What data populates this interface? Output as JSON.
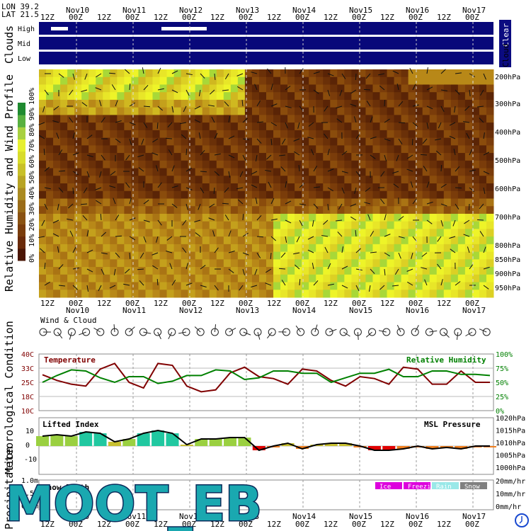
{
  "coords": {
    "lon": "LON 39.2",
    "lat": "LAT 21.5"
  },
  "time_axis": {
    "hour_labels": [
      "12Z",
      "00Z",
      "12Z",
      "00Z",
      "12Z",
      "00Z",
      "12Z",
      "00Z",
      "12Z",
      "00Z",
      "12Z",
      "00Z",
      "12Z",
      "00Z",
      "12Z",
      "00Z"
    ],
    "day_labels": [
      "Nov10",
      "Nov11",
      "Nov12",
      "Nov13",
      "Nov14",
      "Nov15",
      "Nov16",
      "Nov17"
    ]
  },
  "clouds": {
    "title": "Clouds",
    "levels": [
      "High",
      "Mid",
      "Low"
    ],
    "legend_clear": "Clear",
    "legend_cloud": "Cloud",
    "high_fraction_segments": [
      {
        "start_step": 0.1,
        "end_step": 0.7
      },
      {
        "start_step": 4.0,
        "end_step": 5.6
      }
    ]
  },
  "rh_profile": {
    "title": "Relative Humidity and Wind Profile",
    "pressure_levels": [
      "200hPa",
      "300hPa",
      "400hPa",
      "500hPa",
      "600hPa",
      "700hPa",
      "800hPa",
      "850hPa",
      "900hPa",
      "950hPa"
    ],
    "colorbar_labels": [
      "0%",
      "10%",
      "20%",
      "30%",
      "40%",
      "50%",
      "60%",
      "70%",
      "80%",
      "90%",
      "100%"
    ]
  },
  "wind_cloud": {
    "title": "Wind & Cloud"
  },
  "met_title": "Meteorological Condition",
  "chart_data": [
    {
      "type": "line",
      "title": "",
      "x": [
        "Nov9 12Z",
        "Nov9 18Z",
        "Nov10 00Z",
        "Nov10 06Z",
        "Nov10 12Z",
        "Nov10 18Z",
        "Nov11 00Z",
        "Nov11 06Z",
        "Nov11 12Z",
        "Nov11 18Z",
        "Nov12 00Z",
        "Nov12 06Z",
        "Nov12 12Z",
        "Nov12 18Z",
        "Nov13 00Z",
        "Nov13 06Z",
        "Nov13 12Z",
        "Nov13 18Z",
        "Nov14 00Z",
        "Nov14 06Z",
        "Nov14 12Z",
        "Nov14 18Z",
        "Nov15 00Z",
        "Nov15 06Z",
        "Nov15 12Z",
        "Nov15 18Z",
        "Nov16 00Z",
        "Nov16 06Z",
        "Nov16 12Z",
        "Nov16 18Z",
        "Nov17 00Z",
        "Nov17 06Z"
      ],
      "series": [
        {
          "name": "Temperature",
          "color": "#800000",
          "axis": "left",
          "values": [
            29,
            26,
            24,
            23,
            32,
            35,
            25,
            22,
            35,
            34,
            23,
            20,
            21,
            30,
            33,
            28,
            27,
            24,
            32,
            31,
            26,
            23,
            28,
            27,
            24,
            33,
            32,
            24,
            24,
            31,
            25,
            25
          ]
        },
        {
          "name": "Relative Humidity",
          "color": "#008000",
          "axis": "right",
          "values": [
            50,
            62,
            72,
            70,
            58,
            50,
            60,
            60,
            48,
            52,
            62,
            62,
            72,
            70,
            55,
            58,
            70,
            70,
            66,
            66,
            50,
            58,
            66,
            66,
            73,
            60,
            60,
            70,
            70,
            64,
            64,
            62
          ]
        }
      ],
      "left_axis": {
        "ticks": [
          "40C",
          "33C",
          "25C",
          "18C",
          "10C"
        ],
        "range": [
          10,
          40
        ]
      },
      "right_axis": {
        "ticks": [
          "100%",
          "75%",
          "50%",
          "25%",
          "0%"
        ],
        "range": [
          0,
          100
        ]
      }
    },
    {
      "type": "line",
      "title": "",
      "series": [
        {
          "name": "Lifted Index",
          "color": "#000000",
          "axis": "left",
          "values": [
            7,
            8,
            7,
            10,
            9,
            3,
            5,
            9,
            11,
            9,
            1,
            5,
            5,
            6,
            6,
            -3,
            0,
            2,
            -2,
            1,
            2,
            2,
            0,
            -3,
            -3,
            -2,
            0,
            -2,
            -1,
            -2,
            0,
            0
          ]
        },
        {
          "name": "MSL Pressure",
          "color": "#000000",
          "axis": "right",
          "values": []
        }
      ],
      "left_axis": {
        "ticks": [
          "10",
          "0",
          "-10"
        ],
        "range": [
          -20,
          20
        ]
      },
      "right_axis": {
        "ticks": [
          "1020hPa",
          "1015hPa",
          "1010hPa",
          "1005hPa",
          "1000hPa"
        ],
        "range": [
          1000,
          1020
        ]
      }
    },
    {
      "type": "bar",
      "title": "",
      "series": [
        {
          "name": "Snow Depth",
          "values": []
        }
      ],
      "legend": [
        "Ice",
        "Freezing",
        "Rain",
        "Snow"
      ],
      "legend_colors": [
        "#dd00dd",
        "#dd00dd",
        "#99e8e8",
        "#808080"
      ],
      "left_axis": {
        "ticks": [
          "1.0m",
          "0.5m",
          "0.0m"
        ]
      },
      "right_axis": {
        "ticks": [
          "20mm/hr",
          "10mm/hr",
          "0mm/hr"
        ]
      }
    }
  ],
  "sections": {
    "precip_title": "Precipitation"
  },
  "watermark": "MOOT_EB"
}
